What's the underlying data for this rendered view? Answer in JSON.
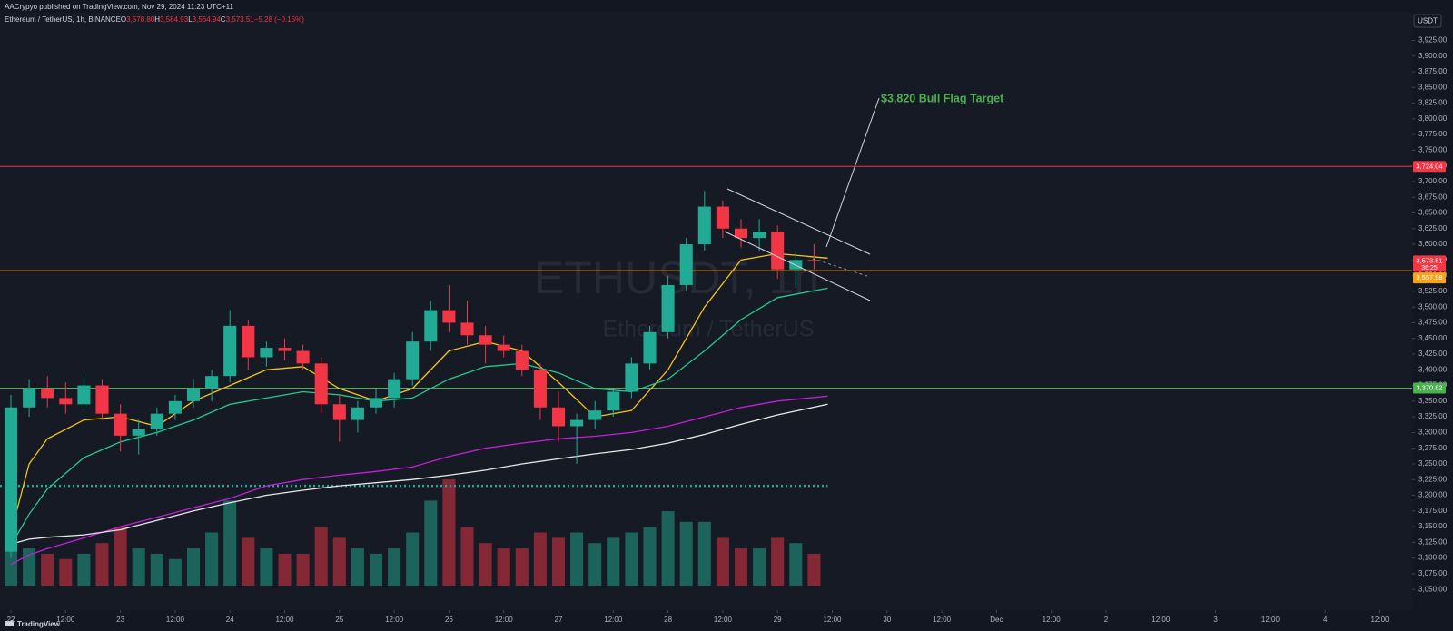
{
  "header": "AACrypyo published on TradingView.com, Nov 29, 2024 11:23 UTC+11",
  "legend": {
    "symbol": "Ethereum / TetherUS, 1h, BINANCE",
    "ohlc": [
      {
        "key": "O",
        "label": "3,578.80"
      },
      {
        "key": "H",
        "label": "3,584.93"
      },
      {
        "key": "L",
        "label": "3,564.94"
      },
      {
        "key": "C",
        "label": "3,573.51"
      }
    ],
    "change": "−5.28 (−0.15%)"
  },
  "watermark": {
    "symbol": "ETHUSDT, 1h",
    "name": "Ethereum / TetherUS"
  },
  "footer": "TradingView",
  "chart_data": {
    "type": "candlestick",
    "currency": "USDT",
    "annotation": "$3,820 Bull Flag Target",
    "x": [
      0,
      4,
      8,
      12,
      16,
      20,
      24,
      28,
      32,
      36,
      40,
      44,
      48,
      52,
      56,
      60,
      64,
      68,
      72,
      76,
      80,
      84,
      88,
      92,
      96,
      100,
      104,
      108,
      112,
      116,
      120,
      124,
      128,
      132,
      136,
      140,
      144,
      148,
      152,
      156,
      160,
      164,
      168,
      172,
      176
    ],
    "open": [
      3110,
      3340,
      3370,
      3355,
      3345,
      3375,
      3330,
      3295,
      3305,
      3330,
      3350,
      3370,
      3390,
      3470,
      3420,
      3435,
      3430,
      3410,
      3345,
      3320,
      3340,
      3355,
      3385,
      3445,
      3495,
      3475,
      3455,
      3440,
      3430,
      3400,
      3340,
      3310,
      3320,
      3335,
      3365,
      3410,
      3460,
      3535,
      3600,
      3660,
      3625,
      3610,
      3620,
      3560,
      3575
    ],
    "high": [
      3360,
      3385,
      3390,
      3380,
      3390,
      3385,
      3345,
      3320,
      3340,
      3360,
      3385,
      3400,
      3495,
      3480,
      3445,
      3450,
      3440,
      3420,
      3360,
      3350,
      3370,
      3395,
      3460,
      3510,
      3535,
      3510,
      3470,
      3455,
      3440,
      3410,
      3365,
      3330,
      3350,
      3370,
      3420,
      3470,
      3550,
      3610,
      3685,
      3670,
      3640,
      3640,
      3630,
      3590,
      3600
    ],
    "low": [
      3100,
      3325,
      3340,
      3330,
      3335,
      3320,
      3270,
      3265,
      3295,
      3320,
      3340,
      3350,
      3380,
      3400,
      3405,
      3415,
      3400,
      3330,
      3285,
      3300,
      3330,
      3340,
      3375,
      3430,
      3460,
      3440,
      3410,
      3420,
      3390,
      3320,
      3285,
      3250,
      3305,
      3325,
      3355,
      3400,
      3450,
      3525,
      3590,
      3610,
      3595,
      3590,
      3545,
      3530,
      3560
    ],
    "close": [
      3340,
      3370,
      3355,
      3345,
      3375,
      3330,
      3295,
      3305,
      3330,
      3350,
      3370,
      3390,
      3470,
      3420,
      3435,
      3430,
      3410,
      3345,
      3320,
      3340,
      3355,
      3385,
      3445,
      3495,
      3475,
      3455,
      3440,
      3430,
      3400,
      3340,
      3310,
      3320,
      3335,
      3365,
      3410,
      3460,
      3535,
      3600,
      3660,
      3625,
      3610,
      3620,
      3560,
      3575,
      3573.51
    ],
    "volume": [
      45,
      35,
      30,
      25,
      30,
      40,
      55,
      35,
      30,
      25,
      35,
      50,
      80,
      45,
      35,
      30,
      30,
      55,
      45,
      35,
      30,
      35,
      50,
      80,
      100,
      55,
      40,
      35,
      35,
      50,
      45,
      50,
      40,
      45,
      50,
      55,
      70,
      60,
      60,
      45,
      35,
      35,
      45,
      40,
      30
    ],
    "up_color": "#22ab94",
    "down_color": "#f23645",
    "moving_averages": {
      "x": [
        0,
        4,
        8,
        16,
        24,
        32,
        40,
        48,
        56,
        64,
        72,
        80,
        88,
        96,
        104,
        112,
        120,
        128,
        136,
        144,
        152,
        160,
        168,
        179
      ],
      "series": [
        {
          "color": "#f5c518",
          "values": [
            3140,
            3250,
            3290,
            3320,
            3325,
            3310,
            3350,
            3375,
            3400,
            3405,
            3370,
            3350,
            3370,
            3430,
            3445,
            3430,
            3380,
            3325,
            3335,
            3400,
            3500,
            3575,
            3585,
            3578
          ]
        },
        {
          "color": "#26c98f",
          "values": [
            3120,
            3170,
            3210,
            3260,
            3285,
            3300,
            3320,
            3345,
            3355,
            3365,
            3360,
            3350,
            3355,
            3385,
            3405,
            3410,
            3395,
            3370,
            3365,
            3385,
            3430,
            3480,
            3515,
            3530
          ]
        },
        {
          "color": "#c21fd6",
          "values": [
            3090,
            3105,
            3115,
            3132,
            3150,
            3165,
            3180,
            3195,
            3215,
            3225,
            3232,
            3238,
            3245,
            3262,
            3275,
            3283,
            3290,
            3294,
            3300,
            3310,
            3325,
            3340,
            3350,
            3358
          ]
        },
        {
          "color": "#e8e8e8",
          "values": [
            3122,
            3130,
            3133,
            3137,
            3145,
            3160,
            3175,
            3188,
            3200,
            3208,
            3215,
            3220,
            3225,
            3232,
            3240,
            3250,
            3258,
            3266,
            3273,
            3283,
            3297,
            3313,
            3328,
            3345
          ]
        }
      ]
    },
    "levels": [
      {
        "value": 3724.04,
        "label": "3,724.04",
        "color": "#f23645"
      },
      {
        "value": 3557.98,
        "label": "3,557.98",
        "color": "#f7a21b"
      },
      {
        "value": 3370.82,
        "label": "3,370.82",
        "color": "#4caf50"
      },
      {
        "value": 3215,
        "color": "#22ab94",
        "style": "dotted",
        "x_end": 179
      }
    ],
    "last_price": {
      "value": 3573.51,
      "label": "3,573.51",
      "countdown": "36:25"
    },
    "xlim": [
      -2.39,
      300.1
    ],
    "ylim": [
      3017,
      3969
    ],
    "yticks": [
      {
        "value": 3050,
        "label": "3,050.00"
      },
      {
        "value": 3075,
        "label": "3,075.00"
      },
      {
        "value": 3100,
        "label": "3,100.00"
      },
      {
        "value": 3125,
        "label": "3,125.00"
      },
      {
        "value": 3150,
        "label": "3,150.00"
      },
      {
        "value": 3175,
        "label": "3,175.00"
      },
      {
        "value": 3200,
        "label": "3,200.00"
      },
      {
        "value": 3225,
        "label": "3,225.00"
      },
      {
        "value": 3250,
        "label": "3,250.00"
      },
      {
        "value": 3275,
        "label": "3,275.00"
      },
      {
        "value": 3300,
        "label": "3,300.00"
      },
      {
        "value": 3325,
        "label": "3,325.00"
      },
      {
        "value": 3350,
        "label": "3,350.00"
      },
      {
        "value": 3375,
        "label": "3,375.00"
      },
      {
        "value": 3400,
        "label": "3,400.00"
      },
      {
        "value": 3425,
        "label": "3,425.00"
      },
      {
        "value": 3450,
        "label": "3,450.00"
      },
      {
        "value": 3475,
        "label": "3,475.00"
      },
      {
        "value": 3500,
        "label": "3,500.00"
      },
      {
        "value": 3525,
        "label": "3,525.00"
      },
      {
        "value": 3550,
        "label": "3,550.00"
      },
      {
        "value": 3575,
        "label": "3,575.00"
      },
      {
        "value": 3600,
        "label": "3,600.00"
      },
      {
        "value": 3625,
        "label": "3,625.00"
      },
      {
        "value": 3650,
        "label": "3,650.00"
      },
      {
        "value": 3675,
        "label": "3,675.00"
      },
      {
        "value": 3700,
        "label": "3,700.00"
      },
      {
        "value": 3725,
        "label": "3,725.00"
      },
      {
        "value": 3750,
        "label": "3,750.00"
      },
      {
        "value": 3775,
        "label": "3,775.00"
      },
      {
        "value": 3800,
        "label": "3,800.00"
      },
      {
        "value": 3825,
        "label": "3,825.00"
      },
      {
        "value": 3850,
        "label": "3,850.00"
      },
      {
        "value": 3875,
        "label": "3,875.00"
      },
      {
        "value": 3900,
        "label": "3,900.00"
      },
      {
        "value": 3925,
        "label": "3,925.00"
      }
    ],
    "xticks": [
      {
        "value": 0,
        "label": "22"
      },
      {
        "value": 12,
        "label": "12:00"
      },
      {
        "value": 24,
        "label": "23"
      },
      {
        "value": 36,
        "label": "12:00"
      },
      {
        "value": 48,
        "label": "24"
      },
      {
        "value": 60,
        "label": "12:00"
      },
      {
        "value": 72,
        "label": "25"
      },
      {
        "value": 84,
        "label": "12:00"
      },
      {
        "value": 96,
        "label": "26"
      },
      {
        "value": 108,
        "label": "12:00"
      },
      {
        "value": 120,
        "label": "27"
      },
      {
        "value": 132,
        "label": "12:00"
      },
      {
        "value": 144,
        "label": "28"
      },
      {
        "value": 156,
        "label": "12:00"
      },
      {
        "value": 168,
        "label": "29"
      },
      {
        "value": 180,
        "label": "12:00"
      },
      {
        "value": 192,
        "label": "30"
      },
      {
        "value": 204,
        "label": "12:00"
      },
      {
        "value": 216,
        "label": "Dec"
      },
      {
        "value": 228,
        "label": "12:00"
      },
      {
        "value": 240,
        "label": "2"
      },
      {
        "value": 252,
        "label": "12:00"
      },
      {
        "value": 264,
        "label": "3"
      },
      {
        "value": 276,
        "label": "12:00"
      },
      {
        "value": 288,
        "label": "4"
      },
      {
        "value": 300,
        "label": "12:00"
      }
    ]
  }
}
